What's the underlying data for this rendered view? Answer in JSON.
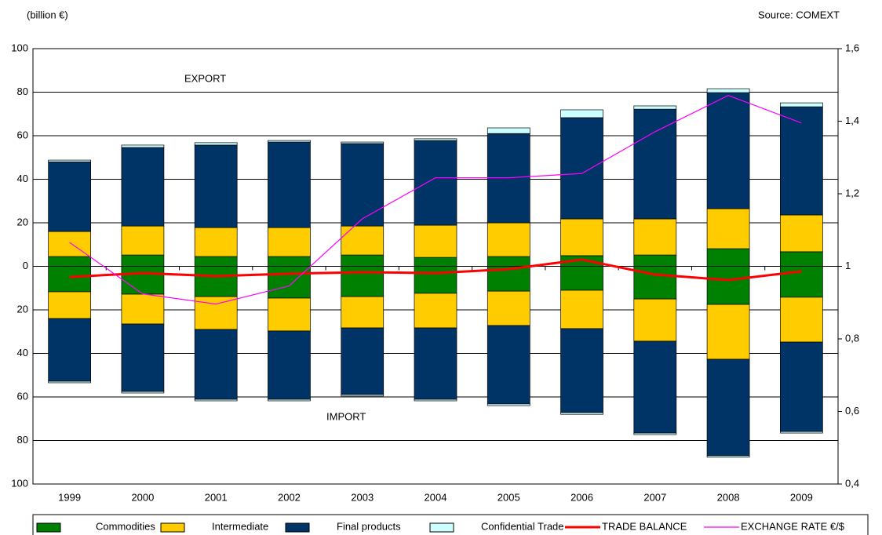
{
  "chart_data": {
    "type": "bar",
    "unit_label": "(billion €)",
    "source": "Source: COMEXT",
    "annotations": [
      "EXPORT",
      "IMPORT"
    ],
    "categories": [
      "1999",
      "2000",
      "2001",
      "2002",
      "2003",
      "2004",
      "2005",
      "2006",
      "2007",
      "2008",
      "2009"
    ],
    "series": [
      {
        "name": "Commodities",
        "color": "#008000",
        "export": [
          4.5,
          5.2,
          4.5,
          4.5,
          5.2,
          4.1,
          4.5,
          4.9,
          5.2,
          8.1,
          6.7
        ],
        "import": [
          -11.7,
          -12.8,
          -13.9,
          -14.6,
          -13.9,
          -12.4,
          -11.4,
          -11,
          -15,
          -17.5,
          -14.2
        ]
      },
      {
        "name": "Intermediate",
        "color": "#ffcc00",
        "export": [
          11.5,
          13.3,
          13.3,
          13.3,
          13.3,
          14.8,
          15.5,
          16.9,
          16.6,
          18.4,
          16.9
        ],
        "import": [
          -12.3,
          -13.7,
          -15.1,
          -15.1,
          -14.4,
          -15.9,
          -15.8,
          -17.6,
          -19.4,
          -25.2,
          -20.6
        ]
      },
      {
        "name": "Final products",
        "color": "#003366",
        "export": [
          32,
          36.1,
          37.9,
          39.3,
          37.9,
          38.9,
          41,
          46.5,
          50.4,
          53.3,
          49.7
        ],
        "import": [
          -28.8,
          -31,
          -32.1,
          -31.4,
          -30.6,
          -32.8,
          -36,
          -38.6,
          -42.2,
          -44.3,
          -41.1
        ]
      },
      {
        "name": "Confidential Trade",
        "color": "#ccffff",
        "export": [
          0.8,
          1.1,
          1.1,
          0.7,
          0.7,
          0.8,
          2.6,
          3.6,
          1.5,
          1.8,
          1.8
        ],
        "import": [
          -0.7,
          -0.7,
          -0.7,
          -0.7,
          -0.7,
          -0.7,
          -0.8,
          -0.8,
          -0.7,
          -0.7,
          -0.7
        ]
      }
    ],
    "lines": [
      {
        "name": "TRADE BALANCE",
        "color": "#ff0000",
        "values": [
          -4.9,
          -3.1,
          -4.5,
          -3.4,
          -2.7,
          -3.1,
          -1.3,
          3.1,
          -3.8,
          -6.3,
          -2.3
        ]
      },
      {
        "name": "EXCHANGE RATE €/$",
        "color": "#ff00ff",
        "axis": "y2",
        "values": [
          1.066,
          0.924,
          0.896,
          0.946,
          1.131,
          1.244,
          1.244,
          1.256,
          1.371,
          1.471,
          1.395
        ]
      }
    ],
    "ylim": [
      -100,
      100
    ],
    "yticks": [
      100,
      80,
      60,
      40,
      20,
      0,
      {
        "value": -20,
        "label": "20"
      },
      {
        "value": -40,
        "label": "40"
      },
      {
        "value": -60,
        "label": "60"
      },
      {
        "value": -80,
        "label": "80"
      },
      {
        "value": -100,
        "label": "100"
      }
    ],
    "y2lim": [
      0.4,
      1.6
    ],
    "y2ticks": [
      {
        "value": 1.6,
        "label": "1,6"
      },
      {
        "value": 1.4,
        "label": "1,4"
      },
      {
        "value": 1.2,
        "label": "1,2"
      },
      1,
      {
        "value": 0.8,
        "label": "0,8"
      },
      {
        "value": 0.6,
        "label": "0,6"
      },
      {
        "value": 0.4,
        "label": "0,4"
      }
    ],
    "grid": true
  }
}
